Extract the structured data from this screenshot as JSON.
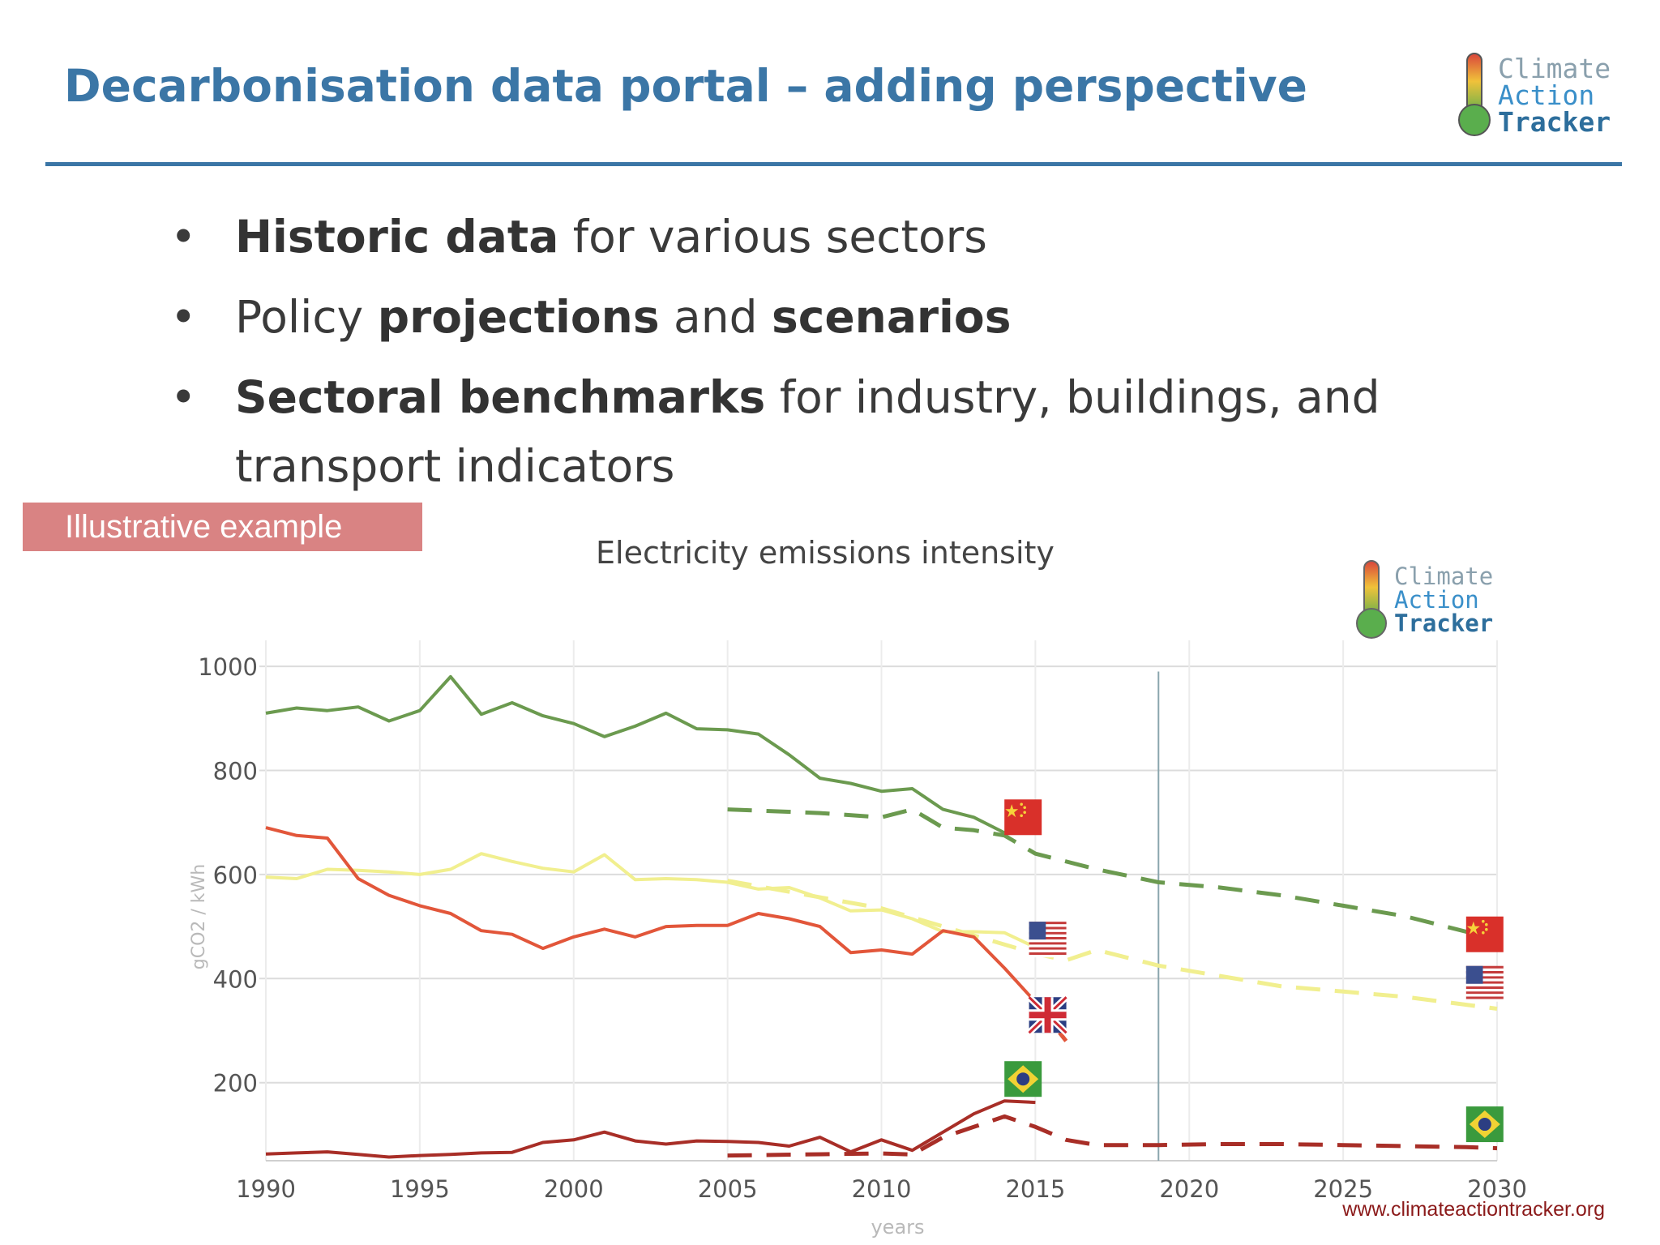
{
  "slide": {
    "title": "Decarbonisation data portal – adding perspective",
    "bullets": [
      {
        "parts": [
          {
            "text": "Historic data",
            "bold": true
          },
          {
            "text": " for various sectors",
            "bold": false
          }
        ]
      },
      {
        "parts": [
          {
            "text": "Policy ",
            "bold": false
          },
          {
            "text": "projections",
            "bold": true
          },
          {
            "text": "  and ",
            "bold": false
          },
          {
            "text": "scenarios",
            "bold": true
          }
        ]
      },
      {
        "parts": [
          {
            "text": "Sectoral benchmarks",
            "bold": true
          },
          {
            "text": " for industry, buildings, and transport indicators",
            "bold": false
          }
        ]
      }
    ],
    "badge": "Illustrative example",
    "url": "www.climateactiontracker.org",
    "bullet_glyph": "•"
  },
  "logo": {
    "line1": "Climate",
    "line2": "Action",
    "line3": "Tracker"
  },
  "chart_data": {
    "type": "line",
    "title": "Electricity emissions intensity",
    "xlabel": "years",
    "ylabel": "gCO2 / kWh",
    "xlim": [
      1990,
      2030
    ],
    "ylim": [
      50,
      1050
    ],
    "x_ticks": [
      1990,
      1995,
      2000,
      2005,
      2010,
      2015,
      2020,
      2025,
      2030
    ],
    "y_ticks": [
      200,
      400,
      600,
      800,
      1000
    ],
    "grid": true,
    "marker_year": 2019,
    "colors": {
      "china": "#6b9a4f",
      "usa": "#f1ef8f",
      "uk": "#e2563a",
      "brazil": "#a82e27"
    },
    "series": [
      {
        "key": "china",
        "style": "solid",
        "color": "#6b9a4f",
        "x": [
          1990,
          1991,
          1992,
          1993,
          1994,
          1995,
          1996,
          1997,
          1998,
          1999,
          2000,
          2001,
          2002,
          2003,
          2004,
          2005,
          2006,
          2007,
          2008,
          2009,
          2010,
          2011,
          2012,
          2013,
          2014
        ],
        "y": [
          910,
          920,
          915,
          922,
          895,
          915,
          980,
          908,
          930,
          905,
          890,
          865,
          885,
          910,
          880,
          878,
          870,
          830,
          785,
          775,
          760,
          765,
          725,
          710,
          680
        ]
      },
      {
        "key": "china",
        "style": "dashed",
        "color": "#6b9a4f",
        "x": [
          2005,
          2008,
          2010,
          2011,
          2012,
          2013,
          2014,
          2015,
          2017,
          2019,
          2021,
          2023,
          2025,
          2027,
          2029,
          2030
        ],
        "y": [
          725,
          718,
          710,
          725,
          690,
          685,
          675,
          640,
          610,
          585,
          575,
          560,
          540,
          520,
          490,
          465
        ]
      },
      {
        "key": "usa",
        "style": "solid",
        "color": "#f1ef8f",
        "x": [
          1990,
          1991,
          1992,
          1993,
          1994,
          1995,
          1996,
          1997,
          1998,
          1999,
          2000,
          2001,
          2002,
          2003,
          2004,
          2005,
          2006,
          2007,
          2008,
          2009,
          2010,
          2011,
          2012,
          2013,
          2014,
          2015
        ],
        "y": [
          595,
          592,
          610,
          608,
          605,
          600,
          610,
          640,
          625,
          612,
          605,
          638,
          590,
          592,
          590,
          585,
          572,
          575,
          555,
          530,
          532,
          515,
          490,
          490,
          488,
          460
        ]
      },
      {
        "key": "usa",
        "style": "dashed",
        "color": "#f1ef8f",
        "x": [
          2005,
          2010,
          2015,
          2016,
          2017,
          2019,
          2021,
          2023,
          2025,
          2027,
          2030
        ],
        "y": [
          588,
          535,
          448,
          435,
          455,
          425,
          405,
          385,
          375,
          365,
          342
        ]
      },
      {
        "key": "uk",
        "style": "solid",
        "color": "#e2563a",
        "x": [
          1990,
          1991,
          1992,
          1993,
          1994,
          1995,
          1996,
          1997,
          1998,
          1999,
          2000,
          2001,
          2002,
          2003,
          2004,
          2005,
          2006,
          2007,
          2008,
          2009,
          2010,
          2011,
          2012,
          2013,
          2014,
          2015
        ],
        "y": [
          690,
          675,
          670,
          592,
          560,
          540,
          525,
          492,
          485,
          458,
          480,
          495,
          480,
          500,
          502,
          502,
          525,
          515,
          500,
          450,
          455,
          447,
          492,
          480,
          420,
          355
        ]
      },
      {
        "key": "uk",
        "style": "dashed",
        "color": "#e2563a",
        "x": [
          2015,
          2016
        ],
        "y": [
          355,
          280
        ]
      },
      {
        "key": "brazil",
        "style": "solid",
        "color": "#a82e27",
        "x": [
          1990,
          1991,
          1992,
          1993,
          1994,
          1995,
          1996,
          1997,
          1998,
          1999,
          2000,
          2001,
          2002,
          2003,
          2004,
          2005,
          2006,
          2007,
          2008,
          2009,
          2010,
          2011,
          2012,
          2013,
          2014,
          2015
        ],
        "y": [
          63,
          65,
          67,
          62,
          57,
          60,
          62,
          65,
          66,
          85,
          90,
          105,
          88,
          82,
          88,
          87,
          85,
          78,
          95,
          67,
          90,
          70,
          105,
          140,
          165,
          162
        ]
      },
      {
        "key": "brazil",
        "style": "dashed",
        "color": "#a82e27",
        "x": [
          2005,
          2010,
          2011,
          2012,
          2013,
          2014,
          2015,
          2016,
          2017,
          2019,
          2021,
          2023,
          2025,
          2027,
          2029,
          2030
        ],
        "y": [
          60,
          64,
          62,
          95,
          115,
          135,
          115,
          90,
          80,
          80,
          82,
          82,
          80,
          78,
          76,
          74
        ]
      }
    ],
    "flags": [
      {
        "country": "china",
        "x": 2014.6,
        "y": 710
      },
      {
        "country": "usa",
        "x": 2015.4,
        "y": 475
      },
      {
        "country": "uk",
        "x": 2015.4,
        "y": 330
      },
      {
        "country": "brazil",
        "x": 2014.6,
        "y": 207
      },
      {
        "country": "china",
        "x": 2029.6,
        "y": 485
      },
      {
        "country": "usa",
        "x": 2029.6,
        "y": 390
      },
      {
        "country": "brazil",
        "x": 2029.6,
        "y": 120
      }
    ]
  }
}
